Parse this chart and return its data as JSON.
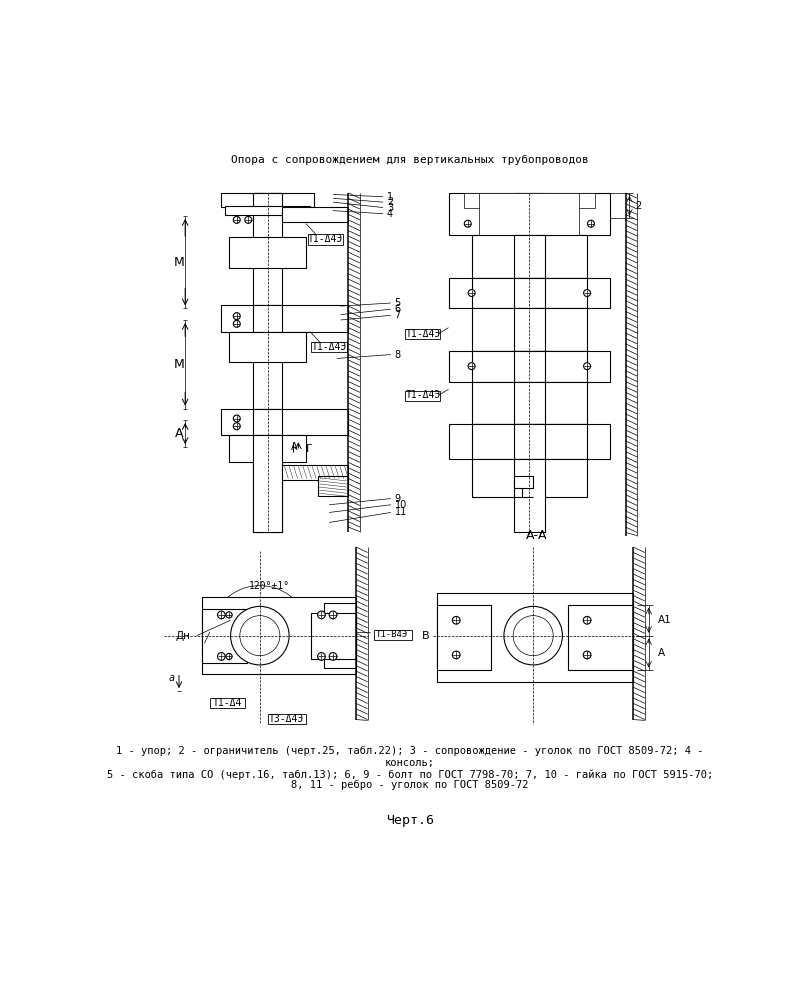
{
  "title": "Опора с сопровождением для вертикальных трубопроводов",
  "caption_line1": "1 - упор; 2 - ограничитель (черт.25, табл.22); 3 - сопровождение - уголок по ГОСТ 8509-72; 4 -",
  "caption_line2": "консоль;",
  "caption_line3": "5 - скоба типа СО (черт.16, табл.13); 6, 9 - болт по ГОСТ 7798-70; 7, 10 - гайка по ГОСТ 5915-70;",
  "caption_line4": "8, 11 - ребро - уголок по ГОСТ 8509-72",
  "chert": "Черт.6",
  "bg_color": "#ffffff",
  "line_color": "#000000"
}
